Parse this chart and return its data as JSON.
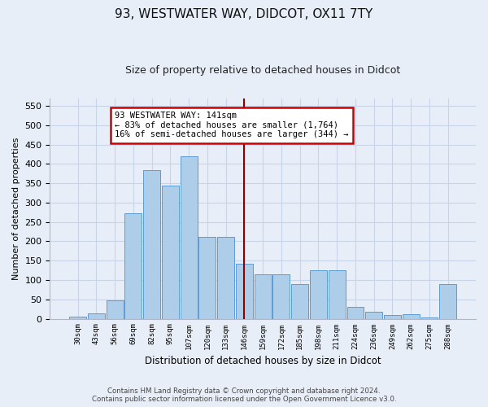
{
  "title": "93, WESTWATER WAY, DIDCOT, OX11 7TY",
  "subtitle": "Size of property relative to detached houses in Didcot",
  "xlabel": "Distribution of detached houses by size in Didcot",
  "ylabel": "Number of detached properties",
  "footer_line1": "Contains HM Land Registry data © Crown copyright and database right 2024.",
  "footer_line2": "Contains public sector information licensed under the Open Government Licence v3.0.",
  "annotation_line1": "93 WESTWATER WAY: 141sqm",
  "annotation_line2": "← 83% of detached houses are smaller (1,764)",
  "annotation_line3": "16% of semi-detached houses are larger (344) →",
  "bar_labels": [
    "30sqm",
    "43sqm",
    "56sqm",
    "69sqm",
    "82sqm",
    "95sqm",
    "107sqm",
    "120sqm",
    "133sqm",
    "146sqm",
    "159sqm",
    "172sqm",
    "185sqm",
    "198sqm",
    "211sqm",
    "224sqm",
    "236sqm",
    "249sqm",
    "262sqm",
    "275sqm",
    "288sqm"
  ],
  "bar_values": [
    5,
    13,
    48,
    273,
    385,
    345,
    419,
    211,
    211,
    143,
    115,
    115,
    90,
    125,
    125,
    30,
    18,
    9,
    11,
    3,
    90
  ],
  "bar_color": "#aecde8",
  "bar_edge_color": "#5b9bd5",
  "vline_x_idx": 9,
  "vline_color": "#8b0000",
  "annotation_box_color": "#cc0000",
  "background_color": "#e8eef8",
  "ylim": [
    0,
    570
  ],
  "yticks": [
    0,
    50,
    100,
    150,
    200,
    250,
    300,
    350,
    400,
    450,
    500,
    550
  ]
}
